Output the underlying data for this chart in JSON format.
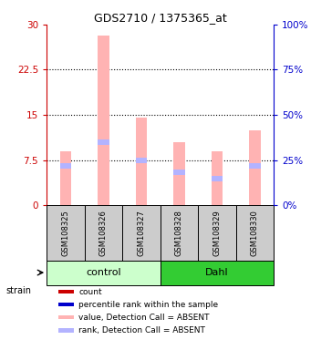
{
  "title": "GDS2710 / 1375365_at",
  "samples": [
    "GSM108325",
    "GSM108326",
    "GSM108327",
    "GSM108328",
    "GSM108329",
    "GSM108330"
  ],
  "groups": [
    "control",
    "control",
    "control",
    "Dahl",
    "Dahl",
    "Dahl"
  ],
  "bar_heights": [
    9.0,
    28.2,
    14.5,
    10.5,
    9.0,
    12.5
  ],
  "rank_values": [
    6.5,
    10.5,
    7.5,
    5.5,
    4.5,
    6.5
  ],
  "ylim_left": [
    0,
    30
  ],
  "ylim_right": [
    0,
    100
  ],
  "yticks_left": [
    0,
    7.5,
    15,
    22.5,
    30
  ],
  "yticks_right": [
    0,
    25,
    50,
    75,
    100
  ],
  "ytick_labels_left": [
    "0",
    "7.5",
    "15",
    "22.5",
    "30"
  ],
  "ytick_labels_right": [
    "0%",
    "25%",
    "50%",
    "75%",
    "100%"
  ],
  "bar_color": "#ffb3b3",
  "rank_color": "#b3b3ff",
  "left_axis_color": "#cc0000",
  "right_axis_color": "#0000cc",
  "group_colors": {
    "control": "#ccffcc",
    "Dahl": "#33cc33"
  },
  "gray_bg": "#cccccc",
  "white_bg": "#ffffff",
  "legend_items": [
    {
      "label": "count",
      "color": "#cc0000"
    },
    {
      "label": "percentile rank within the sample",
      "color": "#0000cc"
    },
    {
      "label": "value, Detection Call = ABSENT",
      "color": "#ffb3b3"
    },
    {
      "label": "rank, Detection Call = ABSENT",
      "color": "#b3b3ff"
    }
  ],
  "strain_label": "strain",
  "grid_color": "#000000",
  "bar_width": 0.3
}
